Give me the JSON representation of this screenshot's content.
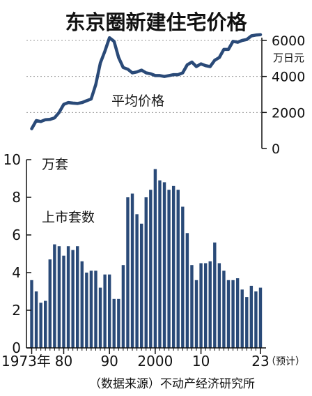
{
  "title": "东京圈新建住宅价格",
  "source": "（数据来源）不动产经济研究所",
  "colors": {
    "series": "#2a4a78",
    "axis": "#111111",
    "grid": "#999999"
  },
  "chart_data": [
    {
      "type": "line",
      "series_label": "平均价格",
      "unit_label": "万日元",
      "y_ticks": [
        "0",
        "2000",
        "4000",
        "6000"
      ],
      "ylim": [
        0,
        6000
      ],
      "xlim": [
        1973,
        2023
      ],
      "x": [
        1973,
        1974,
        1975,
        1976,
        1977,
        1978,
        1979,
        1980,
        1981,
        1982,
        1983,
        1984,
        1985,
        1986,
        1987,
        1988,
        1989,
        1990,
        1991,
        1992,
        1993,
        1994,
        1995,
        1996,
        1997,
        1998,
        1999,
        2000,
        2001,
        2002,
        2003,
        2004,
        2005,
        2006,
        2007,
        2008,
        2009,
        2010,
        2011,
        2012,
        2013,
        2014,
        2015,
        2016,
        2017,
        2018,
        2019,
        2020,
        2021,
        2022,
        2023
      ],
      "values": [
        1100,
        1550,
        1500,
        1600,
        1620,
        1700,
        2000,
        2450,
        2550,
        2520,
        2500,
        2550,
        2650,
        2750,
        3550,
        4750,
        5400,
        6150,
        5950,
        5050,
        4500,
        4400,
        4200,
        4250,
        4350,
        4200,
        4150,
        4050,
        4050,
        4000,
        4050,
        4100,
        4100,
        4200,
        4650,
        4800,
        4550,
        4700,
        4600,
        4550,
        4900,
        5050,
        5500,
        5500,
        5950,
        5900,
        6000,
        6050,
        6250,
        6300,
        6320
      ]
    },
    {
      "type": "bar",
      "series_label": "上市套数",
      "unit_label": "万套",
      "y_ticks": [
        "0",
        "2",
        "4",
        "6",
        "8",
        "10"
      ],
      "ylim": [
        0,
        10
      ],
      "x_tick_labels": [
        "1973年",
        "80",
        "90",
        "2000",
        "10",
        "23"
      ],
      "forecast_label": "（预计）",
      "x": [
        1973,
        1974,
        1975,
        1976,
        1977,
        1978,
        1979,
        1980,
        1981,
        1982,
        1983,
        1984,
        1985,
        1986,
        1987,
        1988,
        1989,
        1990,
        1991,
        1992,
        1993,
        1994,
        1995,
        1996,
        1997,
        1998,
        1999,
        2000,
        2001,
        2002,
        2003,
        2004,
        2005,
        2006,
        2007,
        2008,
        2009,
        2010,
        2011,
        2012,
        2013,
        2014,
        2015,
        2016,
        2017,
        2018,
        2019,
        2020,
        2021,
        2022,
        2023
      ],
      "values": [
        3.6,
        3.0,
        2.4,
        2.5,
        4.7,
        5.5,
        5.4,
        4.9,
        5.4,
        5.2,
        5.4,
        4.6,
        4.0,
        4.1,
        4.1,
        3.2,
        3.9,
        3.9,
        2.6,
        2.6,
        4.4,
        8.0,
        8.2,
        7.1,
        6.6,
        8.0,
        8.4,
        9.5,
        8.9,
        8.8,
        8.4,
        8.6,
        8.4,
        7.5,
        6.1,
        4.4,
        3.6,
        4.5,
        4.5,
        4.6,
        5.6,
        4.5,
        4.1,
        3.6,
        3.6,
        3.7,
        3.1,
        2.7,
        3.3,
        3.0,
        3.2
      ]
    }
  ]
}
